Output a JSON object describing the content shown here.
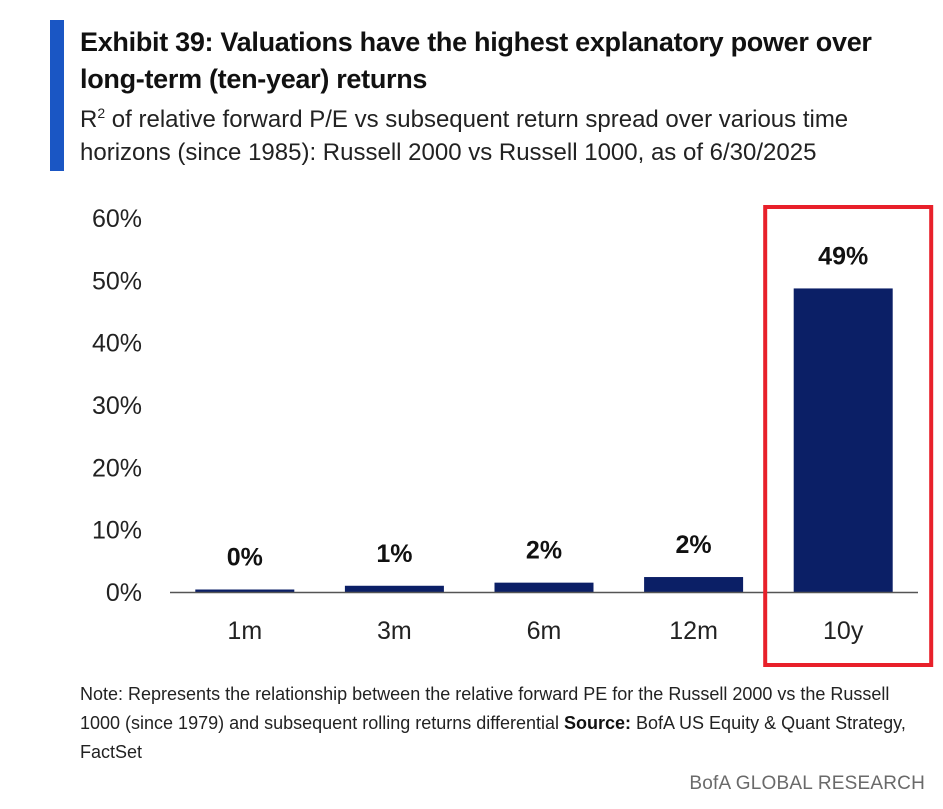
{
  "title": "Exhibit 39: Valuations have the highest explanatory power over long-term (ten-year) returns",
  "subtitle_prefix": "R",
  "subtitle_sup": "2",
  "subtitle_rest": " of relative forward P/E vs subsequent return spread over various time horizons (since 1985): Russell 2000 vs Russell 1000, as of 6/30/2025",
  "note_text": "Note: Represents the relationship between the relative forward PE for the Russell 2000 vs the Russell 1000 (since 1979) and subsequent rolling returns differential ",
  "source_label": "Source:",
  "source_text": " BofA US Equity & Quant Strategy, FactSet",
  "brand": "BofA GLOBAL RESEARCH",
  "colors": {
    "bar": "#0b1f66",
    "accent": "#1a56c4",
    "highlight_box": "#e8202a"
  },
  "chart_data": {
    "type": "bar",
    "categories": [
      "1m",
      "3m",
      "6m",
      "12m",
      "10y"
    ],
    "values": [
      0.4,
      1.0,
      1.5,
      2.4,
      48.7
    ],
    "data_labels": [
      "0%",
      "1%",
      "2%",
      "2%",
      "49%"
    ],
    "yticks": [
      "0%",
      "10%",
      "20%",
      "30%",
      "40%",
      "50%",
      "60%"
    ],
    "ylim": [
      0,
      60
    ],
    "grid": false,
    "highlighted_category": "10y"
  }
}
